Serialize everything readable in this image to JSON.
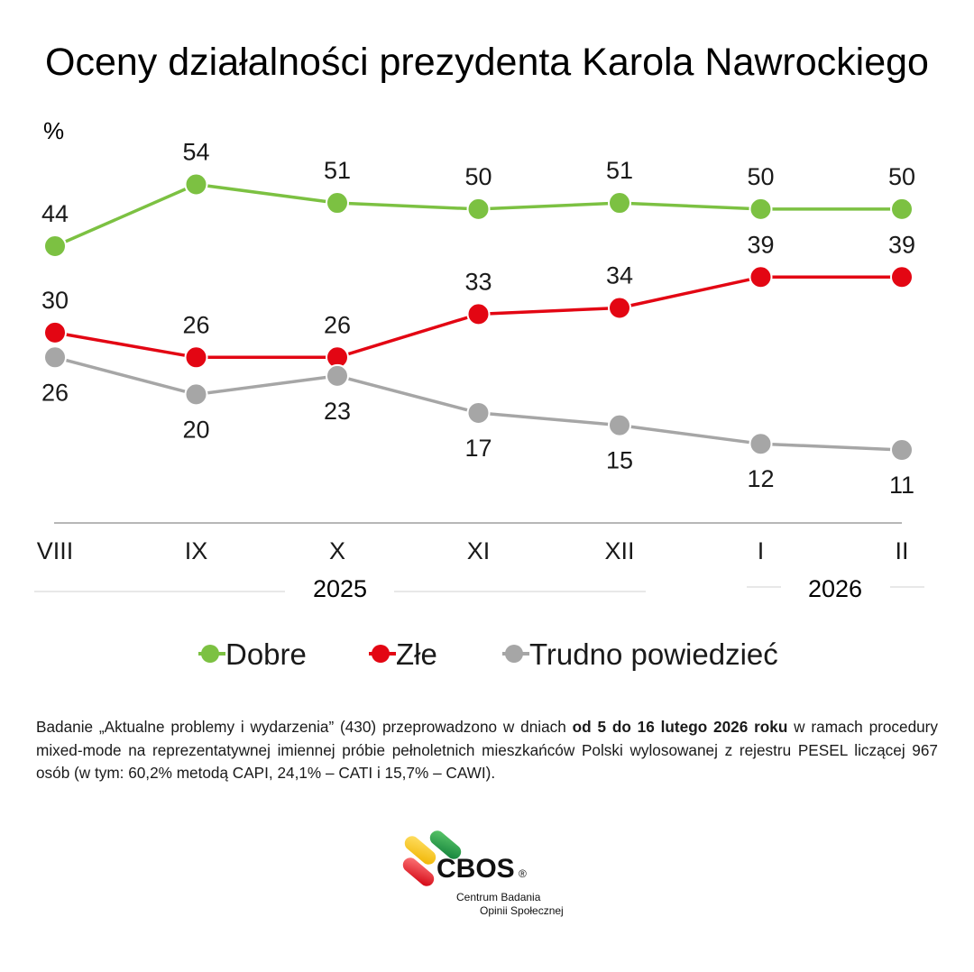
{
  "chart_data": {
    "type": "line",
    "title": "Oceny działalności prezydenta Karola Nawrockiego",
    "ylabel": "%",
    "categories": [
      "VIII",
      "IX",
      "X",
      "XI",
      "XII",
      "I",
      "II"
    ],
    "year_labels": [
      "2025",
      "2026"
    ],
    "ylim": [
      0,
      60
    ],
    "grid": false,
    "legend_position": "bottom",
    "series": [
      {
        "name": "Dobre",
        "color": "#7cc142",
        "values": [
          44,
          54,
          51,
          50,
          51,
          50,
          50
        ]
      },
      {
        "name": "Złe",
        "color": "#e30613",
        "values": [
          30,
          26,
          26,
          33,
          34,
          39,
          39
        ]
      },
      {
        "name": "Trudno powiedzieć",
        "color": "#a6a6a6",
        "values": [
          26,
          20,
          23,
          17,
          15,
          12,
          11
        ]
      }
    ]
  },
  "note": {
    "part1": "Badanie „Aktualne problemy i wydarzenia” (430) przeprowadzono w dniach ",
    "bold": "od 5 do 16 lutego 2026 roku",
    "part2": " w ramach procedury mixed-mode na reprezentatywnej imiennej próbie pełnoletnich mieszkańców Polski wylosowanej z rejestru PESEL liczącej 967 osób (w tym: 60,2% metodą CAPI, 24,1% – CATI i 15,7% – CAWI)."
  },
  "logo": {
    "name": "CBOS",
    "reg": "®",
    "line1": "Centrum Badania",
    "line2": "Opinii Społecznej",
    "colors": [
      "#f5c400",
      "#1a9a3a",
      "#e30613"
    ]
  }
}
